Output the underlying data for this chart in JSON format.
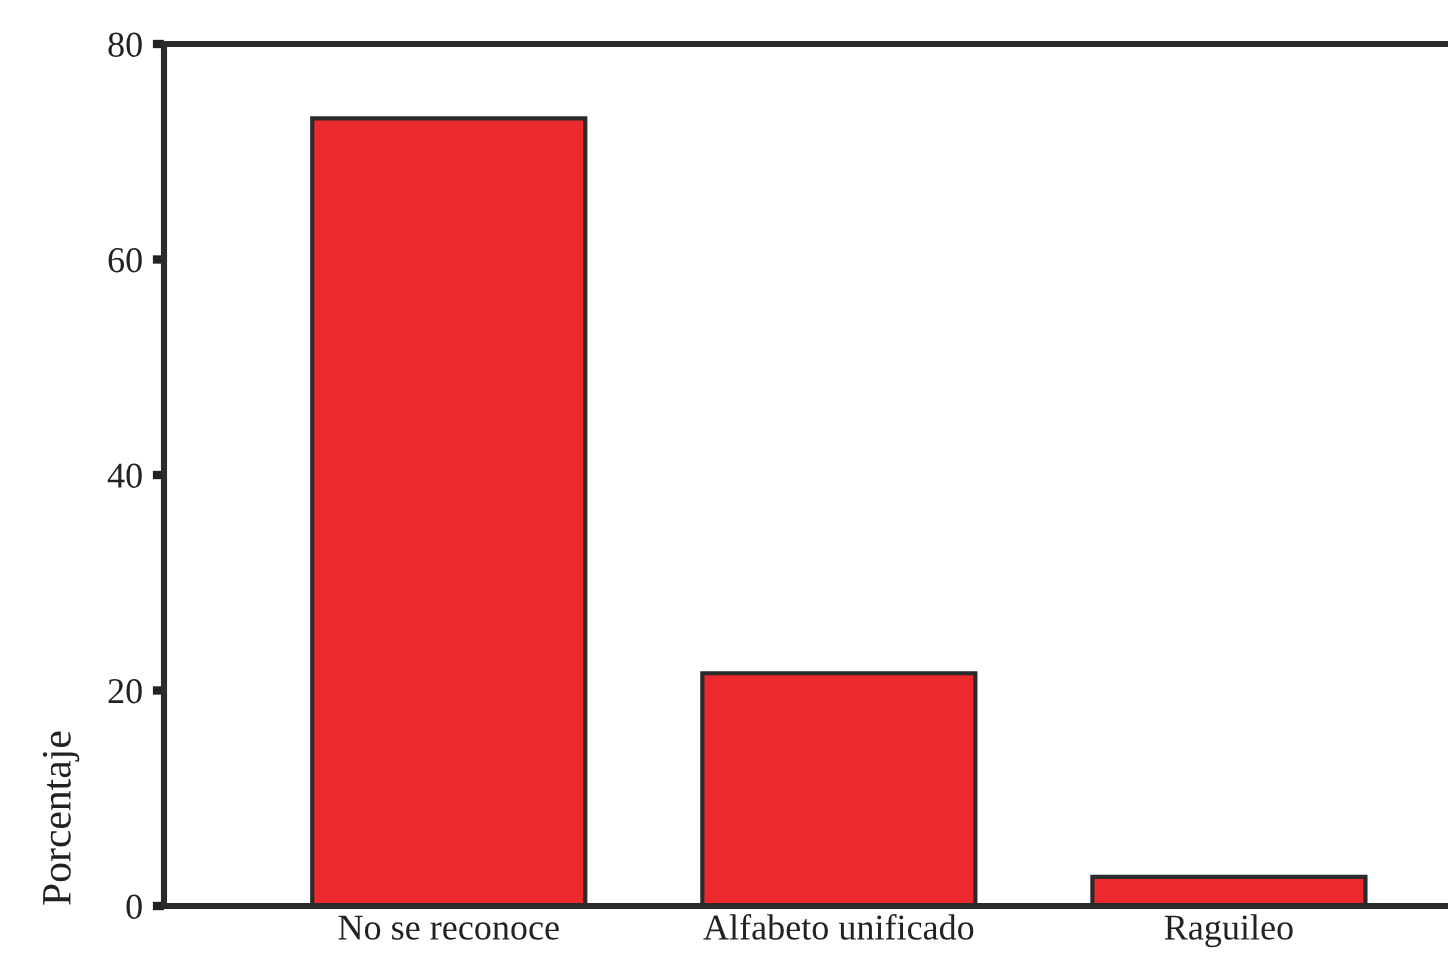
{
  "chart_data": {
    "type": "bar",
    "ylabel": "Porcentaje",
    "categories": [
      "No se reconoce",
      "Alfabeto unificado",
      "Raguileo"
    ],
    "values": [
      73.1,
      21.6,
      2.7
    ],
    "color": "#ec2a2e",
    "ylim": [
      0,
      80
    ],
    "yticks": [
      0,
      20,
      40,
      60,
      80
    ],
    "grid": false
  }
}
